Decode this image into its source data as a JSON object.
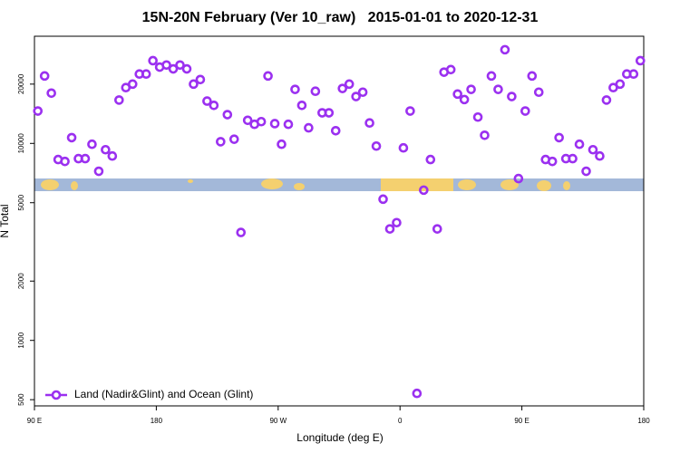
{
  "chart_data": {
    "type": "scatter",
    "title": "15N-20N February (Ver 10_raw)   2015-01-01 to 2020-12-31",
    "x_label": "Longitude (deg E)",
    "y_label": "N Total",
    "x": [
      92.5,
      97.5,
      102.5,
      107.5,
      112.5,
      117.5,
      122.5,
      127.5,
      132.5,
      137.5,
      142.5,
      147.5,
      152.5,
      157.5,
      162.5,
      167.5,
      172.5,
      177.5,
      182.5,
      187.5,
      192.5,
      197.5,
      202.5,
      207.5,
      212.5,
      217.5,
      222.5,
      227.5,
      232.5,
      237.5,
      242.5,
      247.5,
      252.5,
      257.5,
      262.5,
      267.5,
      272.5,
      277.5,
      282.5,
      287.5,
      292.5,
      297.5,
      302.5,
      307.5,
      312.5,
      317.5,
      322.5,
      327.5,
      332.5,
      337.5,
      342.5,
      347.5,
      352.5,
      357.5,
      362.5,
      367.5,
      372.5,
      377.5,
      382.5,
      387.5,
      392.5,
      397.5,
      402.5,
      407.5,
      412.5,
      417.5,
      422.5,
      427.5,
      432.5,
      437.5,
      442.5,
      447.5,
      452.5,
      457.5,
      462.5,
      467.5,
      472.5,
      477.5,
      482.5,
      487.5,
      492.5,
      497.5,
      502.5,
      507.5,
      512.5,
      517.5,
      522.5,
      527.5,
      532.5,
      537.5
    ],
    "series": [
      {
        "name": "Land (Nadir&Glint) and Ocean (Glint)",
        "color": "#9b30f0",
        "values": [
          14600,
          22000,
          18000,
          8280,
          8100,
          10700,
          8370,
          8370,
          9900,
          7220,
          9290,
          8630,
          16600,
          19200,
          20000,
          22500,
          22500,
          26300,
          24400,
          25000,
          23900,
          25000,
          23900,
          20000,
          21100,
          16400,
          15600,
          10200,
          14000,
          10500,
          3530,
          13100,
          12500,
          12900,
          22000,
          12600,
          9900,
          12500,
          18800,
          15600,
          12000,
          18400,
          14300,
          14300,
          11600,
          19000,
          20000,
          17300,
          18200,
          12700,
          9690,
          5210,
          3680,
          3960,
          9490,
          14600,
          538,
          5790,
          8280,
          3680,
          23000,
          23700,
          17800,
          16700,
          18800,
          13600,
          11000,
          22000,
          18800,
          29900,
          17300,
          6630,
          14600,
          22000,
          18200,
          8280,
          8100,
          10700,
          8370,
          8370,
          9900,
          7220,
          9290,
          8630,
          16600,
          19200,
          20000,
          22500,
          22500,
          26300
        ]
      }
    ],
    "xlim": [
      90,
      540
    ],
    "xticks": [
      {
        "value": 90,
        "label": "90 E"
      },
      {
        "value": 180,
        "label": "180"
      },
      {
        "value": 270,
        "label": "90 W"
      },
      {
        "value": 360,
        "label": "0"
      },
      {
        "value": 450,
        "label": "90 E"
      },
      {
        "value": 540,
        "label": "180"
      }
    ],
    "ylim": [
      465,
      35000
    ],
    "yticks": [
      500,
      1000,
      2000,
      5000,
      10000,
      20000
    ],
    "y_scale": "log",
    "grid": false,
    "legend": "lower left"
  }
}
